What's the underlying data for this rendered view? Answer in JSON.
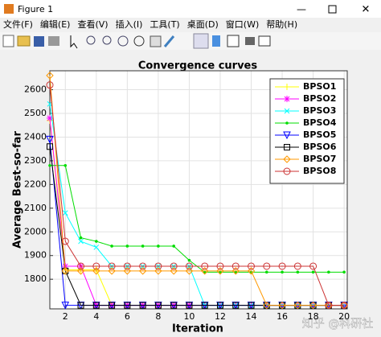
{
  "window": {
    "title": "Figure 1",
    "menu": [
      "文件(F)",
      "编辑(E)",
      "查看(V)",
      "插入(I)",
      "工具(T)",
      "桌面(D)",
      "窗口(W)",
      "帮助(H)"
    ]
  },
  "watermark": "知乎 @科研社",
  "chart_data": {
    "type": "line",
    "title": "Convergence curves",
    "x_label": "Iteration",
    "y_label": "Average Best-so-far",
    "x": [
      1,
      2,
      3,
      4,
      5,
      6,
      7,
      8,
      9,
      10,
      11,
      12,
      13,
      14,
      15,
      16,
      17,
      18,
      19,
      20
    ],
    "xlim": [
      1,
      20.2
    ],
    "ylim": [
      1675,
      2680
    ],
    "xticks": [
      2,
      4,
      6,
      8,
      10,
      12,
      14,
      16,
      18,
      20
    ],
    "yticks": [
      1800,
      1900,
      2000,
      2100,
      2200,
      2300,
      2400,
      2500,
      2600
    ],
    "grid": true,
    "legend_position": "upper-right",
    "series": [
      {
        "name": "BPSO1",
        "color": "#ffff00",
        "marker": "plus",
        "values": [
          2470,
          1840,
          1840,
          1840,
          1690,
          1690,
          1690,
          1690,
          1690,
          1690,
          1690,
          1690,
          1690,
          1690,
          1690,
          1690,
          1690,
          1690,
          1690,
          1690
        ]
      },
      {
        "name": "BPSO2",
        "color": "#ff00ff",
        "marker": "star",
        "values": [
          2480,
          1855,
          1855,
          1690,
          1690,
          1690,
          1690,
          1690,
          1690,
          1690,
          1690,
          1690,
          1690,
          1690,
          1690,
          1690,
          1690,
          1690,
          1690,
          1690
        ]
      },
      {
        "name": "BPSO3",
        "color": "#00ffff",
        "marker": "cross",
        "values": [
          2540,
          2080,
          1960,
          1935,
          1855,
          1855,
          1855,
          1855,
          1855,
          1855,
          1690,
          1690,
          1690,
          1690,
          1690,
          1690,
          1690,
          1690,
          1690,
          1690
        ]
      },
      {
        "name": "BPSO4",
        "color": "#00dd00",
        "marker": "dot",
        "values": [
          2280,
          2280,
          1975,
          1960,
          1940,
          1940,
          1940,
          1940,
          1940,
          1880,
          1830,
          1830,
          1830,
          1830,
          1830,
          1830,
          1830,
          1830,
          1830,
          1830
        ]
      },
      {
        "name": "BPSO5",
        "color": "#0000ff",
        "marker": "triangle-down",
        "values": [
          2390,
          1690,
          1690,
          1690,
          1690,
          1690,
          1690,
          1690,
          1690,
          1690,
          1690,
          1690,
          1690,
          1690,
          1690,
          1690,
          1690,
          1690,
          1690,
          1690
        ]
      },
      {
        "name": "BPSO6",
        "color": "#000000",
        "marker": "square",
        "values": [
          2360,
          1835,
          1690,
          1690,
          1690,
          1690,
          1690,
          1690,
          1690,
          1690,
          1690,
          1690,
          1690,
          1690,
          1690,
          1690,
          1690,
          1690,
          1690,
          1690
        ]
      },
      {
        "name": "BPSO7",
        "color": "#ff9900",
        "marker": "diamond",
        "values": [
          2660,
          1835,
          1835,
          1835,
          1835,
          1835,
          1835,
          1835,
          1835,
          1835,
          1835,
          1835,
          1835,
          1835,
          1690,
          1690,
          1690,
          1690,
          1690,
          1690
        ]
      },
      {
        "name": "BPSO8",
        "color": "#cc3333",
        "marker": "circle",
        "values": [
          2620,
          1960,
          1855,
          1855,
          1855,
          1855,
          1855,
          1855,
          1855,
          1855,
          1855,
          1855,
          1855,
          1855,
          1855,
          1855,
          1855,
          1855,
          1690,
          1690
        ]
      }
    ]
  }
}
